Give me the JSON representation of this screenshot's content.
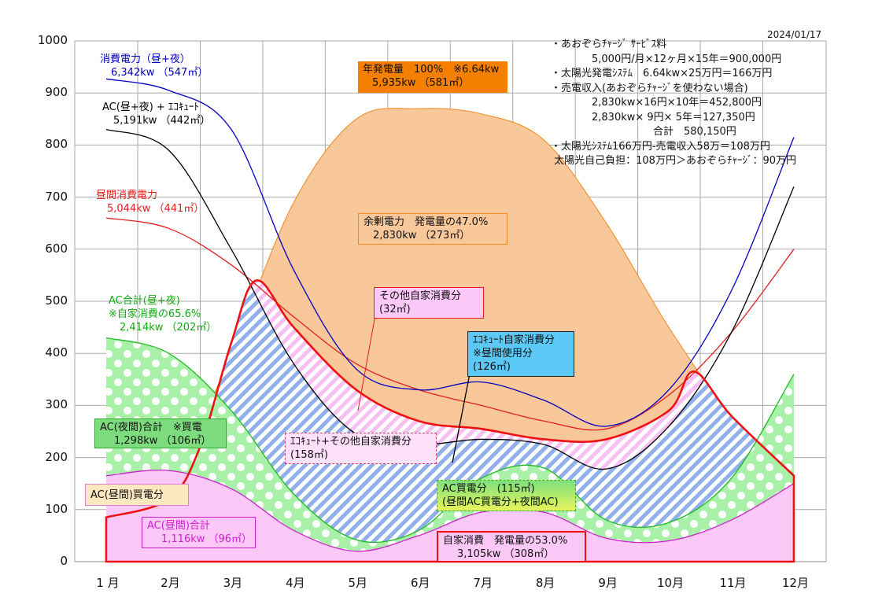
{
  "date": "2024/01/17",
  "chart_data": {
    "type": "area",
    "xlabel": "",
    "ylabel": "",
    "ylim": [
      0,
      1000
    ],
    "yticks": [
      "0",
      "100",
      "200",
      "300",
      "400",
      "500",
      "600",
      "700",
      "800",
      "900",
      "1000"
    ],
    "categories": [
      "1 月",
      "2月",
      "3月",
      "4月",
      "5月",
      "6月",
      "7月",
      "8月",
      "9月",
      "10月",
      "11月",
      "12月"
    ],
    "grid": true,
    "series": [
      {
        "key": "gen",
        "name": "年発電量",
        "color": "#f5a04a",
        "x": [
          1,
          2,
          3,
          4,
          5,
          6,
          7,
          8,
          9,
          10,
          11,
          12
        ],
        "y": [
          85,
          140,
          400,
          690,
          850,
          870,
          860,
          810,
          650,
          450,
          280,
          165
        ]
      },
      {
        "key": "total",
        "name": "消費電力（昼+夜）",
        "color": "#0000c0",
        "x": [
          1,
          2,
          3,
          4,
          5,
          6,
          7,
          8,
          9,
          10,
          11,
          12
        ],
        "y": [
          927,
          905,
          830,
          560,
          370,
          330,
          345,
          310,
          260,
          330,
          520,
          815
        ]
      },
      {
        "key": "acEco",
        "name": "AC(昼+夜) + ｴｺｷｭｰﾄ",
        "color": "#000000",
        "x": [
          1,
          2,
          3,
          4,
          5,
          6,
          7,
          8,
          9,
          10,
          11,
          12
        ],
        "y": [
          830,
          790,
          600,
          380,
          245,
          225,
          235,
          225,
          178,
          260,
          440,
          720
        ]
      },
      {
        "key": "day",
        "name": "昼間消費電力",
        "color": "#e02020",
        "x": [
          1,
          2,
          3,
          4,
          5,
          6,
          7,
          8,
          9,
          10,
          11,
          12
        ],
        "y": [
          660,
          640,
          570,
          470,
          380,
          330,
          300,
          270,
          255,
          320,
          440,
          600
        ]
      },
      {
        "key": "self",
        "name": "自家消費",
        "color": "#ee1111",
        "x": [
          1,
          2,
          2.5,
          3,
          3.4,
          4,
          5,
          6,
          7,
          8,
          9,
          10,
          10.4,
          11,
          12
        ],
        "y": [
          85,
          120,
          220,
          420,
          540,
          450,
          330,
          270,
          255,
          235,
          235,
          290,
          365,
          280,
          165
        ]
      },
      {
        "key": "ac",
        "name": "AC合計(昼+夜)",
        "color": "#22bb22",
        "x": [
          1,
          2,
          3,
          4,
          5,
          6,
          7,
          8,
          9,
          10,
          11,
          12
        ],
        "y": [
          430,
          400,
          290,
          130,
          42,
          60,
          160,
          180,
          80,
          75,
          160,
          360
        ]
      },
      {
        "key": "acDay",
        "name": "AC(昼間)合計",
        "color": "#cc22cc",
        "x": [
          1,
          2,
          3,
          4,
          5,
          6,
          7,
          8,
          9,
          10,
          11,
          12
        ],
        "y": [
          165,
          175,
          140,
          60,
          20,
          50,
          95,
          95,
          45,
          40,
          80,
          150
        ]
      }
    ]
  },
  "labels": {
    "total": [
      "消費電力（昼+夜）",
      "6,342kw （547㎡）"
    ],
    "acEco": [
      "AC(昼+夜) + ｴｺｷｭｰﾄ",
      "5,191kw （442㎡）"
    ],
    "day": [
      "昼間消費電力",
      "5,044kw （441㎡）"
    ],
    "ac": [
      "AC合計(昼+夜)",
      "※自家消費の65.6%",
      "2,414kw （202㎡）"
    ]
  },
  "boxes": {
    "gen": [
      "年発電量　100%　※6.64kw",
      "5,935kw （581㎡）"
    ],
    "surplus": [
      "余剰電力　発電量の47.0%",
      "2,830kw （273㎡）"
    ],
    "other": [
      "その他自家消費分",
      "(32㎡)"
    ],
    "eco": [
      "ｴｺｷｭｰﾄ自家消費分",
      "※昼間使用分",
      "(126㎡)"
    ],
    "ecoOther": [
      "ｴｺｷｭｰﾄ+その他自家消費分",
      "(158㎡)"
    ],
    "acNight": [
      "AC(夜間)合計　※買電",
      "1,298kw （106㎡）"
    ],
    "acDayBuy": [
      "AC(昼間)買電分"
    ],
    "acDay": [
      "AC(昼間)合計",
      "1,116kw （96㎡）"
    ],
    "acBuy": [
      "AC買電分　(115㎡)",
      "(昼間AC買電分+夜間AC)"
    ],
    "self": [
      "自家消費　発電量の53.0%",
      "3,105kw （308㎡）"
    ]
  },
  "notes": [
    "・あおぞらﾁｬｰｼﾞ ｻｰﾋﾞｽ料",
    "　　　　5,000円/月×12ヶ月×15年＝900,000円",
    "・太陽光発電ｼｽﾃﾑ　6.64kw×25万円＝166万円",
    "・売電収入(あおぞらﾁｬｰｼﾞを使わない場合)",
    "　　　　2,830kw×16円×10年＝452,800円",
    "　　　　2,830kw× 9円× 5年＝127,350円",
    "　　　　　　　　　　合計　580,150円",
    "・太陽光ｼｽﾃﾑ166万円-売電収入58万＝108万円",
    " 太陽光自己負担：108万円＞あおぞらﾁｬｰｼﾞ：90万円"
  ]
}
